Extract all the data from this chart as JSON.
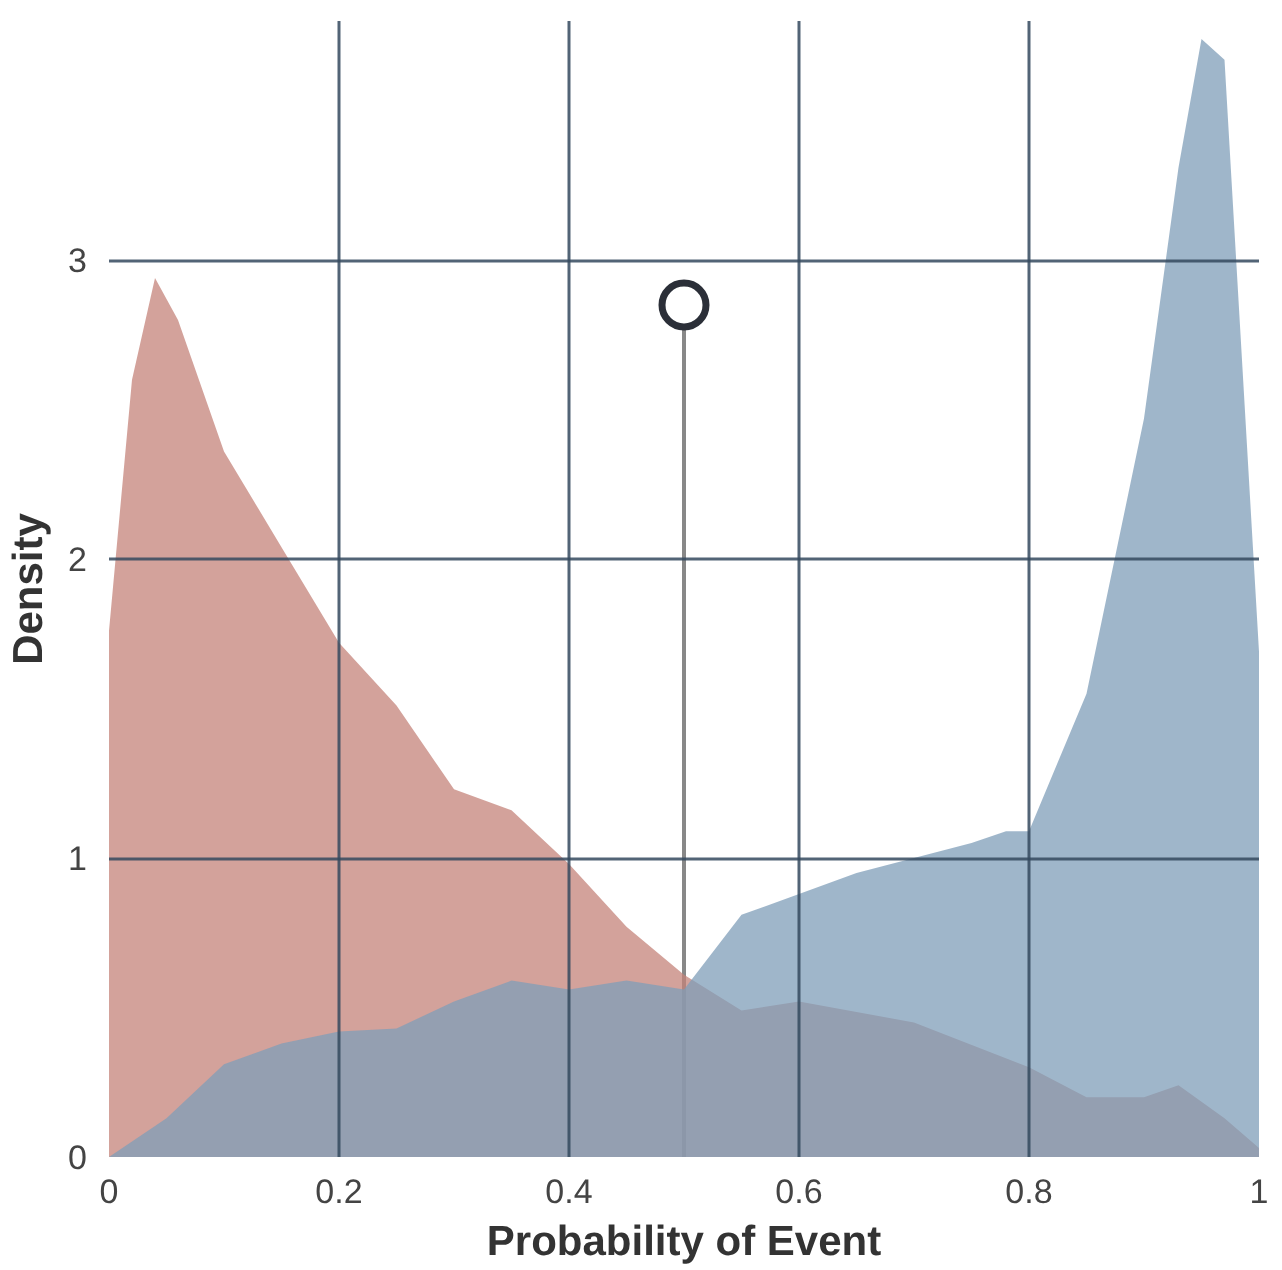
{
  "chart_data": {
    "type": "area",
    "xlabel": "Probability of Event",
    "ylabel": "Density",
    "xlim": [
      0,
      1
    ],
    "ylim": [
      0,
      3.8
    ],
    "xticks": [
      0,
      0.2,
      0.4,
      0.6,
      0.8,
      1
    ],
    "yticks": [
      0,
      1,
      2,
      3
    ],
    "grid": true,
    "series": [
      {
        "color": "#c4837a",
        "x": [
          0,
          0.02,
          0.04,
          0.06,
          0.1,
          0.15,
          0.2,
          0.25,
          0.3,
          0.35,
          0.4,
          0.45,
          0.5,
          0.55,
          0.6,
          0.7,
          0.8,
          0.85,
          0.9,
          0.93,
          0.97,
          1
        ],
        "values": [
          1.76,
          2.6,
          2.94,
          2.8,
          2.36,
          2.04,
          1.72,
          1.51,
          1.23,
          1.16,
          0.98,
          0.77,
          0.61,
          0.49,
          0.52,
          0.45,
          0.3,
          0.2,
          0.2,
          0.24,
          0.13,
          0.03
        ]
      },
      {
        "color": "#7f9db8",
        "x": [
          0,
          0.05,
          0.1,
          0.15,
          0.2,
          0.25,
          0.3,
          0.35,
          0.4,
          0.45,
          0.5,
          0.55,
          0.6,
          0.65,
          0.7,
          0.75,
          0.78,
          0.8,
          0.85,
          0.9,
          0.93,
          0.95,
          0.97,
          1
        ],
        "values": [
          0,
          0.13,
          0.31,
          0.38,
          0.42,
          0.43,
          0.52,
          0.59,
          0.56,
          0.59,
          0.56,
          0.81,
          0.88,
          0.95,
          1.0,
          1.05,
          1.09,
          1.09,
          1.55,
          2.47,
          3.31,
          3.74,
          3.67,
          1.69
        ]
      },
      {
        "type": "lollipop",
        "color": "#2b2f38",
        "x": [
          0.5
        ],
        "values": [
          2.85
        ]
      }
    ]
  }
}
